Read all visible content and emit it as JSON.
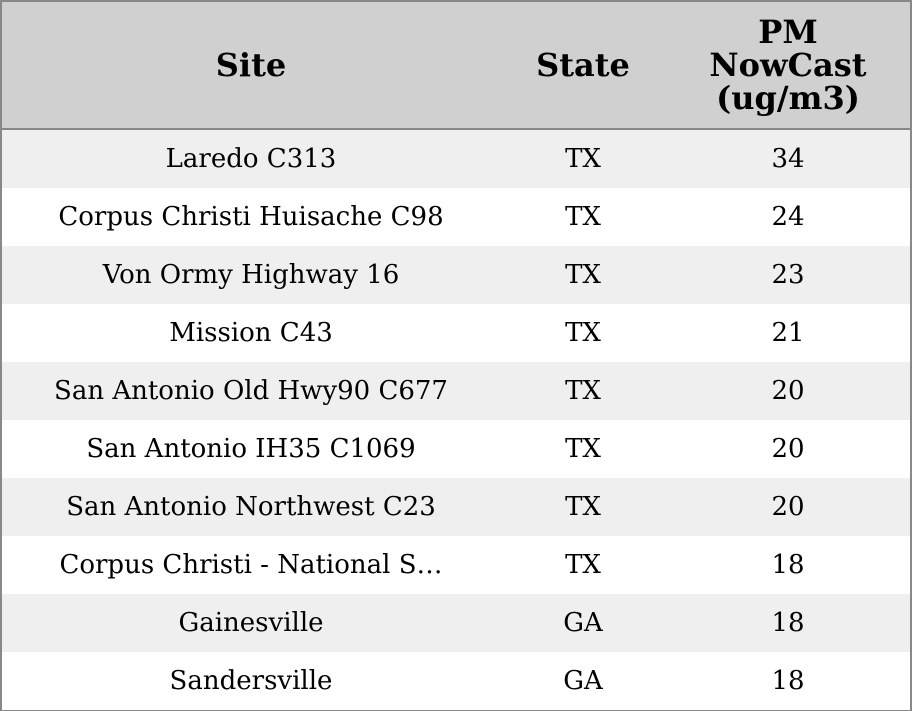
{
  "header": {
    "columns": [
      "Site",
      "State",
      "PM NowCast (ug/m3)"
    ]
  },
  "table": {
    "rows": [
      [
        "Laredo C313",
        "TX",
        34
      ],
      [
        "Corpus Christi Huisache C98",
        "TX",
        24
      ],
      [
        "Von Ormy Highway 16",
        "TX",
        23
      ],
      [
        "Mission C43",
        "TX",
        21
      ],
      [
        "San Antonio Old Hwy90 C677",
        "TX",
        20
      ],
      [
        "San Antonio IH35 C1069",
        "TX",
        20
      ],
      [
        "San Antonio Northwest C23",
        "TX",
        20
      ],
      [
        "Corpus Christi - National S…",
        "TX",
        18
      ],
      [
        "Gainesville",
        "GA",
        18
      ],
      [
        "Sandersville",
        "GA",
        18
      ]
    ]
  }
}
